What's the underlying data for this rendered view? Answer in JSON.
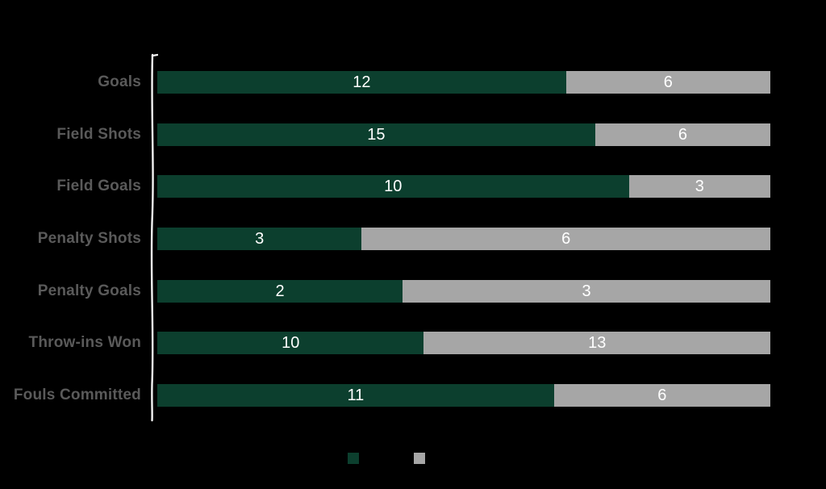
{
  "page": {
    "background_color": "#000000"
  },
  "chart_data": {
    "type": "bar",
    "variant": "horizontal-stacked-percent",
    "title": "",
    "xlabel": "",
    "ylabel": "",
    "grid": false,
    "categories": [
      "Goals",
      "Field Shots",
      "Field Goals",
      "Penalty Shots",
      "Penalty Goals",
      "Throw-ins Won",
      "Fouls Committed"
    ],
    "series": [
      {
        "name": "",
        "color": "#0c3f2e",
        "values": [
          12,
          15,
          10,
          3,
          2,
          10,
          11
        ]
      },
      {
        "name": "",
        "color": "#a6a6a6",
        "values": [
          6,
          6,
          3,
          6,
          3,
          13,
          6
        ]
      }
    ],
    "value_label_color": "#ffffff",
    "category_label_color": "#5a5a5a",
    "axis_line_color": "#f2f2f2",
    "legend": {
      "position": "bottom",
      "labels_visible": false,
      "swatch_colors": [
        "#0c3f2e",
        "#a6a6a6"
      ]
    }
  }
}
